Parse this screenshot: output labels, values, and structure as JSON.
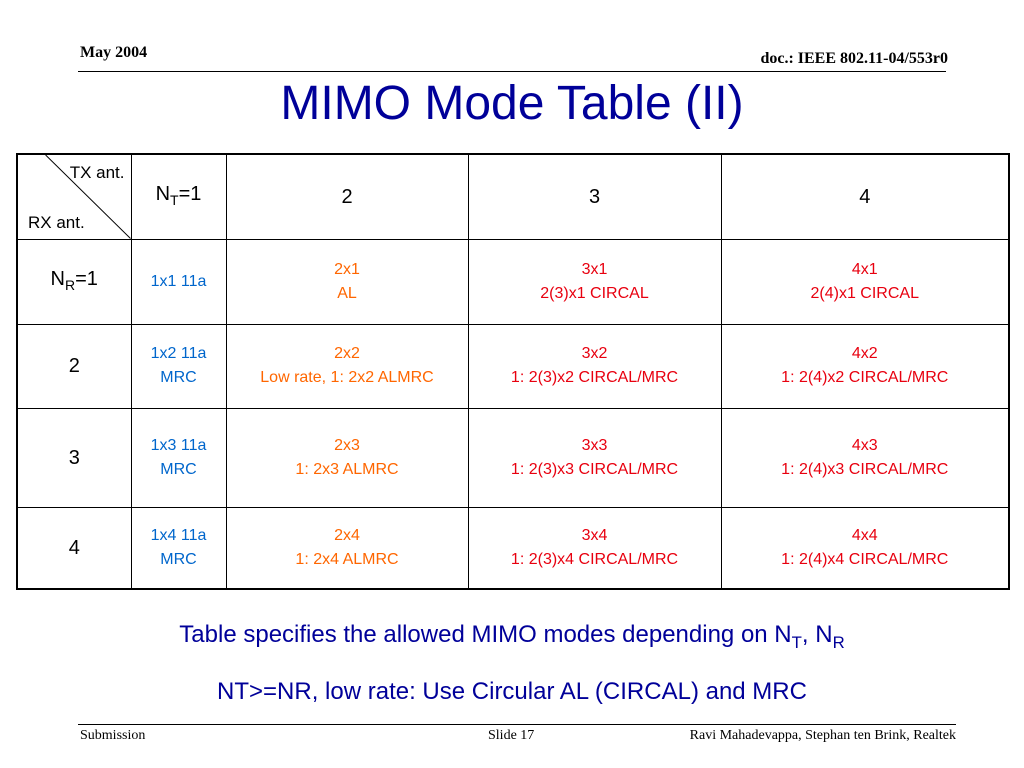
{
  "header": {
    "date": "May 2004",
    "doc": "doc.: IEEE 802.11-04/553r0"
  },
  "title": "MIMO Mode Table (II)",
  "table": {
    "corner_tx": "TX ant.",
    "corner_rx": "RX ant.",
    "col_headers": [
      {
        "pre": "N",
        "sub": "T",
        "post": "=1"
      },
      {
        "pre": "2",
        "sub": "",
        "post": ""
      },
      {
        "pre": "3",
        "sub": "",
        "post": ""
      },
      {
        "pre": "4",
        "sub": "",
        "post": ""
      }
    ],
    "rows": [
      {
        "header": {
          "pre": "N",
          "sub": "R",
          "post": "=1"
        },
        "cells": [
          {
            "lines": [
              "1x1 11a"
            ],
            "color": "#0066cc"
          },
          {
            "lines": [
              "2x1",
              "AL"
            ],
            "color": "#ff6600"
          },
          {
            "lines": [
              "3x1",
              "2(3)x1 CIRCAL"
            ],
            "color": "#e8000f"
          },
          {
            "lines": [
              "4x1",
              "2(4)x1 CIRCAL"
            ],
            "color": "#e8000f"
          }
        ]
      },
      {
        "header": {
          "pre": "2",
          "sub": "",
          "post": ""
        },
        "cells": [
          {
            "lines": [
              "1x2 11a",
              "MRC"
            ],
            "color": "#0066cc"
          },
          {
            "lines": [
              "2x2",
              "Low rate, 1: 2x2 ALMRC"
            ],
            "color": "#ff6600"
          },
          {
            "lines": [
              "3x2",
              "1: 2(3)x2 CIRCAL/MRC"
            ],
            "color": "#e8000f"
          },
          {
            "lines": [
              "4x2",
              "1: 2(4)x2 CIRCAL/MRC"
            ],
            "color": "#e8000f"
          }
        ]
      },
      {
        "header": {
          "pre": "3",
          "sub": "",
          "post": ""
        },
        "cells": [
          {
            "lines": [
              "1x3 11a",
              "MRC"
            ],
            "color": "#0066cc"
          },
          {
            "lines": [
              "2x3",
              "1: 2x3 ALMRC"
            ],
            "color": "#ff6600"
          },
          {
            "lines": [
              "3x3",
              "1: 2(3)x3 CIRCAL/MRC"
            ],
            "color": "#e8000f"
          },
          {
            "lines": [
              "4x3",
              "1: 2(4)x3 CIRCAL/MRC"
            ],
            "color": "#e8000f"
          }
        ]
      },
      {
        "header": {
          "pre": "4",
          "sub": "",
          "post": ""
        },
        "cells": [
          {
            "lines": [
              "1x4 11a",
              "MRC"
            ],
            "color": "#0066cc"
          },
          {
            "lines": [
              "2x4",
              "1: 2x4 ALMRC"
            ],
            "color": "#ff6600"
          },
          {
            "lines": [
              "3x4",
              "1: 2(3)x4 CIRCAL/MRC"
            ],
            "color": "#e8000f"
          },
          {
            "lines": [
              "4x4",
              "1: 2(4)x4 CIRCAL/MRC"
            ],
            "color": "#e8000f"
          }
        ]
      }
    ]
  },
  "captions": {
    "line1_text": "Table specifies the allowed MIMO modes depending on N",
    "line1_sub1": "T",
    "line1_mid": ", N",
    "line1_sub2": "R",
    "line2": "NT>=NR, low rate: Use Circular AL (CIRCAL) and MRC"
  },
  "footer": {
    "left": "Submission",
    "center": "Slide 17",
    "right": "Ravi Mahadevappa, Stephan ten Brink, Realtek"
  },
  "colors": {
    "title": "#000099",
    "mode_11a": "#0066cc",
    "mode_al": "#ff6600",
    "mode_circal": "#e8000f"
  }
}
